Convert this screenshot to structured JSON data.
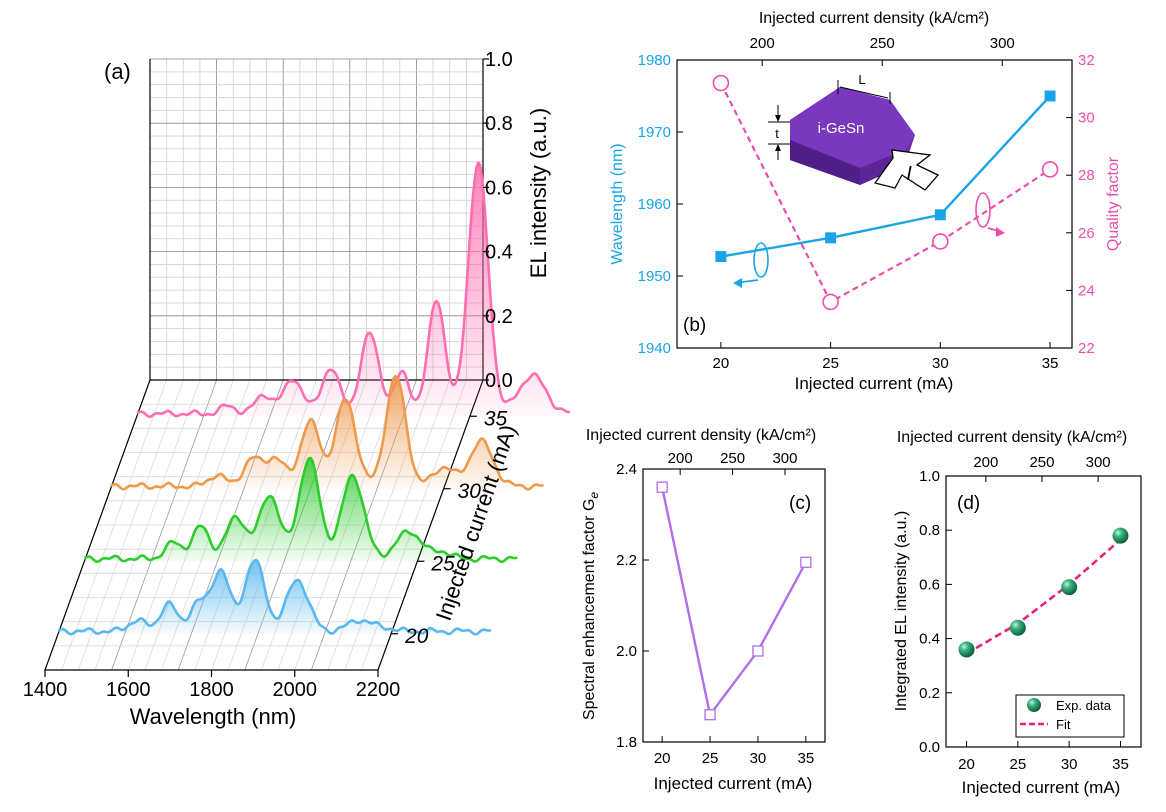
{
  "panel_a": {
    "label": "(a)",
    "x_axis_title": "Wavelength (nm)",
    "x_ticks": [
      "1400",
      "1600",
      "1800",
      "2000",
      "2200"
    ],
    "z_axis_title": "EL intensity (a.u.)",
    "z_ticks": [
      "0.0",
      "0.2",
      "0.4",
      "0.6",
      "0.8",
      "1.0"
    ],
    "y_axis_title": "Injected current (mA)",
    "y_ticks": [
      "20",
      "25",
      "30",
      "35"
    ],
    "series": [
      {
        "current": "20",
        "color": "#5bb8ee",
        "peaks": [
          [
            1590,
            0.035,
            20
          ],
          [
            1665,
            0.085,
            20
          ],
          [
            1735,
            0.085,
            20
          ],
          [
            1790,
            0.19,
            22
          ],
          [
            1872,
            0.22,
            24
          ],
          [
            1975,
            0.16,
            26
          ],
          [
            2123,
            0.035,
            26
          ],
          [
            2180,
            0.012,
            22
          ]
        ]
      },
      {
        "current": "25",
        "color": "#2ecc2e",
        "peaks": [
          [
            1615,
            0.05,
            20
          ],
          [
            1680,
            0.1,
            20
          ],
          [
            1765,
            0.13,
            24
          ],
          [
            1845,
            0.2,
            24
          ],
          [
            1940,
            0.31,
            25
          ],
          [
            2045,
            0.26,
            26
          ],
          [
            2180,
            0.085,
            30
          ],
          [
            2260,
            0.022,
            20
          ]
        ]
      },
      {
        "current": "30",
        "color": "#ee9a4c",
        "peaks": [
          [
            1655,
            0.035,
            20
          ],
          [
            1740,
            0.08,
            22
          ],
          [
            1795,
            0.085,
            24
          ],
          [
            1880,
            0.2,
            24
          ],
          [
            1965,
            0.27,
            24
          ],
          [
            2085,
            0.34,
            24
          ],
          [
            2200,
            0.06,
            24
          ],
          [
            2290,
            0.14,
            28
          ]
        ]
      },
      {
        "current": "35",
        "color": "#ff6eb0",
        "peaks": [
          [
            1620,
            0.025,
            18
          ],
          [
            1705,
            0.06,
            20
          ],
          [
            1775,
            0.11,
            22
          ],
          [
            1865,
            0.14,
            22
          ],
          [
            1960,
            0.25,
            22
          ],
          [
            2038,
            0.13,
            18
          ],
          [
            2120,
            0.36,
            20
          ],
          [
            2220,
            0.78,
            24
          ],
          [
            2350,
            0.12,
            32
          ]
        ]
      }
    ]
  },
  "panel_b": {
    "label": "(b)",
    "chart_data": {
      "type": "line",
      "x": [
        20,
        25,
        30,
        35
      ],
      "xlabel": "Injected current (mA)",
      "xlim": [
        18,
        36
      ],
      "x_ticks": [
        "20",
        "25",
        "30",
        "35"
      ],
      "top_axis_title": "Injected current density (kA/cm²)",
      "top_ticks": [
        "200",
        "250",
        "300"
      ],
      "ylabel_left": "Wavelength (nm)",
      "ylim_left": [
        1940,
        1980
      ],
      "left_ticks": [
        "1940",
        "1950",
        "1960",
        "1970",
        "1980"
      ],
      "ylabel_right": "Quality factor",
      "ylim_right": [
        22,
        32
      ],
      "right_ticks": [
        "22",
        "24",
        "26",
        "28",
        "30",
        "32"
      ],
      "series": [
        {
          "axis": "left",
          "values": [
            1952.7,
            1955.3,
            1958.5,
            1975.0
          ],
          "color": "#1aa3e8",
          "marker": "filled-square"
        },
        {
          "axis": "right",
          "values": [
            31.2,
            23.6,
            25.7,
            28.2
          ],
          "color": "#ee4da8",
          "marker": "open-circle",
          "dashed": true
        }
      ]
    },
    "inset": {
      "material": "i-GeSn",
      "dim_length": "L",
      "dim_thickness": "t",
      "current_symbol": "I"
    }
  },
  "panel_c": {
    "label": "(c)",
    "chart_data": {
      "type": "line",
      "x": [
        20,
        25,
        30,
        35
      ],
      "values": [
        2.36,
        1.86,
        2.0,
        2.195
      ],
      "xlabel": "Injected current (mA)",
      "xlim": [
        18,
        37
      ],
      "x_ticks": [
        "20",
        "25",
        "30",
        "35"
      ],
      "ylabel": "Spectral enhancement factor G",
      "ylabel_sub": "e",
      "ylim": [
        1.8,
        2.4
      ],
      "y_ticks": [
        "1.8",
        "2.0",
        "2.2",
        "2.4"
      ],
      "top_axis_title": "Injected current density (kA/cm²)",
      "top_ticks": [
        "200",
        "250",
        "300"
      ],
      "color": "#b06ee8"
    }
  },
  "panel_d": {
    "label": "(d)",
    "chart_data": {
      "type": "scatter",
      "x": [
        20,
        25,
        30,
        35
      ],
      "values": [
        0.36,
        0.44,
        0.59,
        0.78
      ],
      "fit_x": [
        20,
        25,
        30,
        35
      ],
      "fit_values": [
        0.345,
        0.455,
        0.6,
        0.765
      ],
      "xlabel": "Injected current (mA)",
      "xlim": [
        18,
        37
      ],
      "x_ticks": [
        "20",
        "25",
        "30",
        "35"
      ],
      "ylabel": "Integrated EL intensity (a.u.)",
      "ylim": [
        0,
        1
      ],
      "y_ticks": [
        "0.0",
        "0.2",
        "0.4",
        "0.6",
        "0.8",
        "1.0"
      ],
      "top_axis_title": "Injected current density (kA/cm²)",
      "top_ticks": [
        "200",
        "250",
        "300"
      ],
      "legend": [
        "Exp. data",
        "Fit"
      ],
      "legend_position": "bottom-right",
      "marker_color": "#1e8f63",
      "fit_color": "#e8207a"
    }
  }
}
